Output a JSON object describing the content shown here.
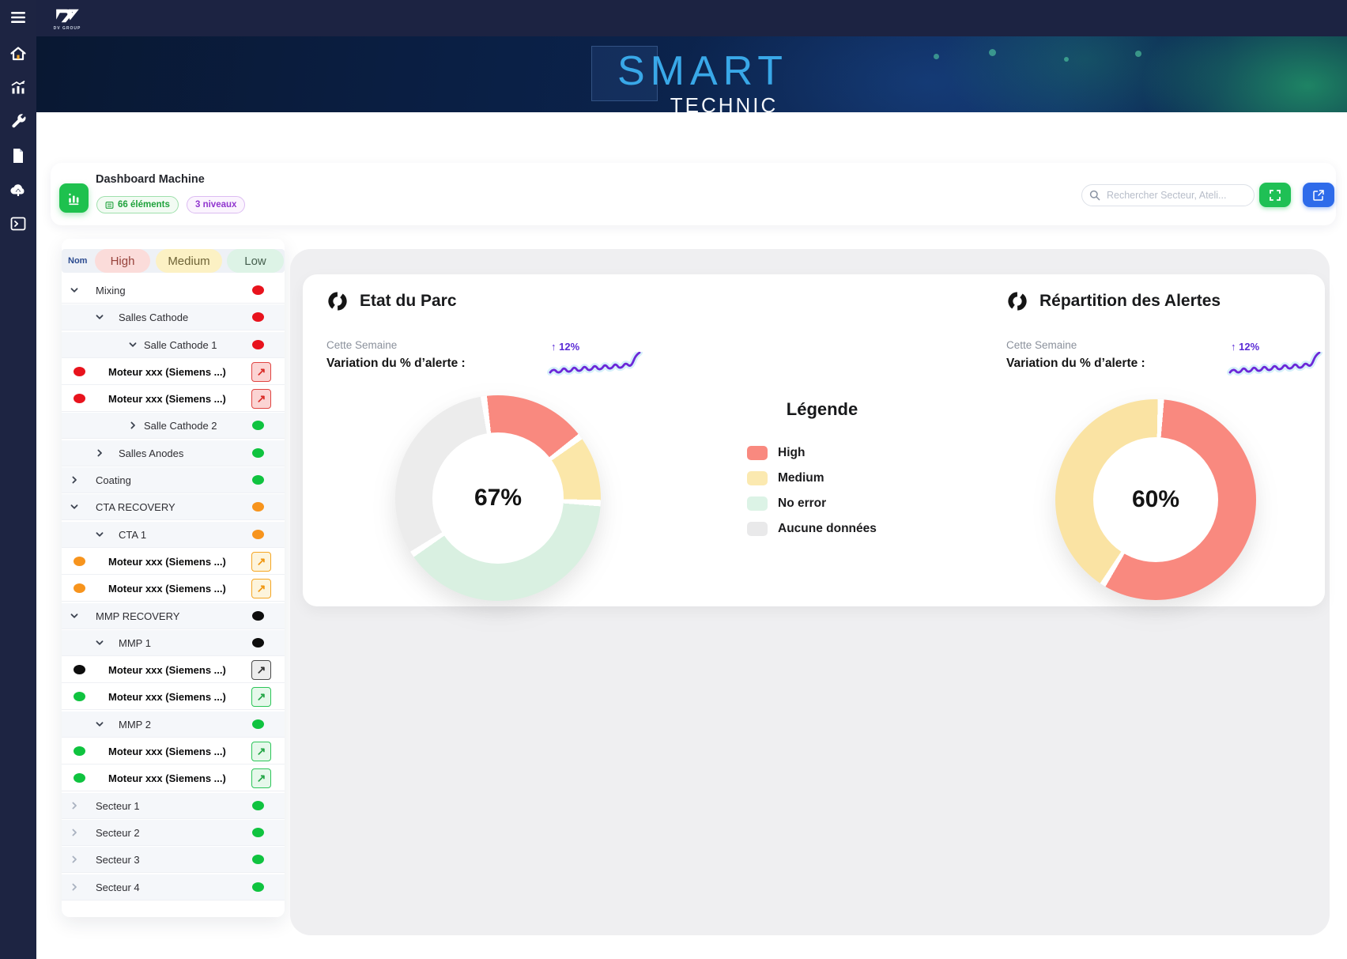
{
  "app": {
    "brand": "DV GROUP"
  },
  "banner": {
    "title_primary": "SMART",
    "title_secondary": "TECHNIC"
  },
  "sidebar": {
    "icons": [
      "menu-icon",
      "home-icon",
      "analytics-icon",
      "tools-icon",
      "document-icon",
      "cloud-upload-icon",
      "console-icon"
    ]
  },
  "header": {
    "title": "Dashboard Machine",
    "badges": [
      {
        "label": "66 éléments",
        "variant": "green"
      },
      {
        "label": "3 niveaux",
        "variant": "purple"
      }
    ],
    "search_placeholder": "Rechercher Secteur, Ateli..."
  },
  "tree": {
    "columns": {
      "name": "Nom",
      "high": "High",
      "medium": "Medium",
      "low": "Low"
    },
    "rows": [
      {
        "label": "Mixing",
        "kind": "group",
        "level": 0,
        "chevron": "down",
        "status": "red",
        "tint": false
      },
      {
        "label": "Salles Cathode",
        "kind": "group",
        "level": 1,
        "chevron": "down",
        "status": "red",
        "tint": true
      },
      {
        "label": "Salle Cathode 1",
        "kind": "group",
        "level": 2,
        "chevron": "down",
        "status": "red",
        "tint": true
      },
      {
        "label": "Moteur xxx (Siemens ...)",
        "kind": "leaf",
        "status": "red"
      },
      {
        "label": "Moteur xxx (Siemens ...)",
        "kind": "leaf",
        "status": "red"
      },
      {
        "label": "Salle Cathode 2",
        "kind": "group",
        "level": 2,
        "chevron": "right",
        "status": "green",
        "tint": true
      },
      {
        "label": "Salles Anodes",
        "kind": "group",
        "level": 1,
        "chevron": "right",
        "status": "green",
        "tint": true
      },
      {
        "label": "Coating",
        "kind": "group",
        "level": 0,
        "chevron": "right",
        "status": "green",
        "tint": true
      },
      {
        "label": "CTA RECOVERY",
        "kind": "group",
        "level": 0,
        "chevron": "down",
        "status": "orange",
        "tint": true
      },
      {
        "label": "CTA 1",
        "kind": "group",
        "level": 1,
        "chevron": "down",
        "status": "orange",
        "tint": true
      },
      {
        "label": "Moteur xxx (Siemens ...)",
        "kind": "leaf",
        "status": "orange"
      },
      {
        "label": "Moteur xxx (Siemens ...)",
        "kind": "leaf",
        "status": "orange"
      },
      {
        "label": "MMP RECOVERY",
        "kind": "group",
        "level": 0,
        "chevron": "down",
        "status": "black",
        "tint": true
      },
      {
        "label": "MMP 1",
        "kind": "group",
        "level": 1,
        "chevron": "down",
        "status": "black",
        "tint": true
      },
      {
        "label": "Moteur xxx (Siemens ...)",
        "kind": "leaf",
        "status": "black"
      },
      {
        "label": "Moteur xxx (Siemens ...)",
        "kind": "leaf",
        "status": "green"
      },
      {
        "label": "MMP 2",
        "kind": "group",
        "level": 1,
        "chevron": "down",
        "status": "green",
        "tint": true
      },
      {
        "label": "Moteur xxx (Siemens ...)",
        "kind": "leaf",
        "status": "green"
      },
      {
        "label": "Moteur xxx (Siemens ...)",
        "kind": "leaf",
        "status": "green"
      },
      {
        "label": "Secteur 1",
        "kind": "group",
        "level": 0,
        "chevron": "right",
        "status": "green",
        "tint": true,
        "muted": true
      },
      {
        "label": "Secteur 2",
        "kind": "group",
        "level": 0,
        "chevron": "right",
        "status": "green",
        "tint": true,
        "muted": true
      },
      {
        "label": "Secteur 3",
        "kind": "group",
        "level": 0,
        "chevron": "right",
        "status": "green",
        "tint": true,
        "muted": true
      },
      {
        "label": "Secteur 4",
        "kind": "group",
        "level": 0,
        "chevron": "right",
        "status": "green",
        "tint": true,
        "muted": true
      }
    ]
  },
  "legend": {
    "title": "Légende",
    "items": [
      {
        "label": "High",
        "color": "#F9897F"
      },
      {
        "label": "Medium",
        "color": "#FBE9B0"
      },
      {
        "label": "No error",
        "color": "#DCF3E6"
      },
      {
        "label": "Aucune données",
        "color": "#E9E9EA"
      }
    ]
  },
  "chart_data": [
    {
      "type": "pie",
      "style": "donut",
      "title": "Etat du Parc",
      "subtitle": "Cette Semaine",
      "metric_label": "Variation du % d’alerte :",
      "delta": "12%",
      "trend": "up",
      "center_label": "67%",
      "start_angle": -8,
      "segments": [
        {
          "name": "High",
          "value": 17,
          "color": "#F9897F"
        },
        {
          "name": "Medium",
          "value": 11,
          "color": "#FBE7A9"
        },
        {
          "name": "No error",
          "value": 40,
          "color": "#D9F0E1"
        },
        {
          "name": "Aucune données",
          "value": 32,
          "color": "#ECECEC"
        }
      ]
    },
    {
      "type": "pie",
      "style": "donut",
      "title": "Répartition des Alertes",
      "subtitle": "Cette Semaine",
      "metric_label": "Variation du % d’alerte :",
      "delta": "12%",
      "trend": "up",
      "center_label": "60%",
      "start_angle": 3,
      "segments": [
        {
          "name": "High",
          "value": 58,
          "color": "#F9897F"
        },
        {
          "name": "Medium",
          "value": 42,
          "color": "#FAE3A3"
        }
      ]
    }
  ],
  "colors": {
    "sidebar_navy": "#1D2442",
    "smart_blue": "#39A8E8",
    "accent_green": "#1FC055",
    "accent_blue": "#2E6BEA",
    "status_red": "#E8131D",
    "status_green": "#0FC33F",
    "status_orange": "#F7941D",
    "status_black": "#0D0D0D"
  }
}
